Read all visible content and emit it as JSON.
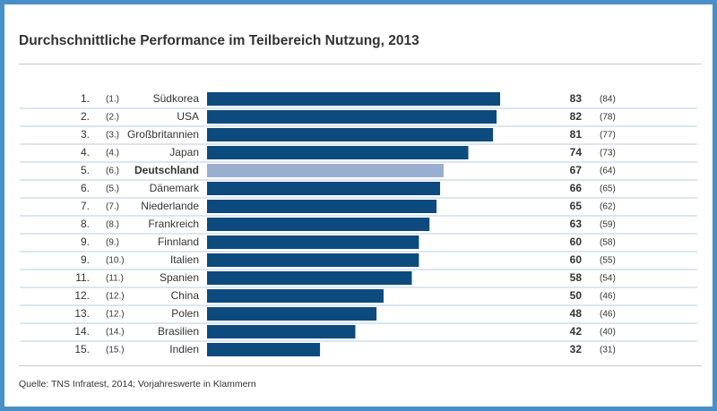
{
  "colors": {
    "bar": "#0d4a7e",
    "highlight_bar": "#9aafd0",
    "frame": "#4a90c8",
    "row_line": "#b8cce4",
    "text": "#333333"
  },
  "chart_data": {
    "type": "bar",
    "orientation": "horizontal",
    "title": "Durchschnittliche Performance im Teilbereich Nutzung, 2013",
    "source": "Quelle: TNS Infratest, 2014; Vorjahreswerte in Klammern",
    "highlight": "Deutschland",
    "xlim": [
      0,
      100
    ],
    "rows": [
      {
        "rank": "1.",
        "prev_rank": "(1.)",
        "category": "Südkorea",
        "value": 83,
        "prev_value": "(84)"
      },
      {
        "rank": "2.",
        "prev_rank": "(2.)",
        "category": "USA",
        "value": 82,
        "prev_value": "(78)"
      },
      {
        "rank": "3.",
        "prev_rank": "(3.)",
        "category": "Großbritannien",
        "value": 81,
        "prev_value": "(77)"
      },
      {
        "rank": "4.",
        "prev_rank": "(4.)",
        "category": "Japan",
        "value": 74,
        "prev_value": "(73)"
      },
      {
        "rank": "5.",
        "prev_rank": "(6.)",
        "category": "Deutschland",
        "value": 67,
        "prev_value": "(64)"
      },
      {
        "rank": "6.",
        "prev_rank": "(5.)",
        "category": "Dänemark",
        "value": 66,
        "prev_value": "(65)"
      },
      {
        "rank": "7.",
        "prev_rank": "(7.)",
        "category": "Niederlande",
        "value": 65,
        "prev_value": "(62)"
      },
      {
        "rank": "8.",
        "prev_rank": "(8.)",
        "category": "Frankreich",
        "value": 63,
        "prev_value": "(59)"
      },
      {
        "rank": "9.",
        "prev_rank": "(9.)",
        "category": "Finnland",
        "value": 60,
        "prev_value": "(58)"
      },
      {
        "rank": "9.",
        "prev_rank": "(10.)",
        "category": "Italien",
        "value": 60,
        "prev_value": "(55)"
      },
      {
        "rank": "11.",
        "prev_rank": "(11.)",
        "category": "Spanien",
        "value": 58,
        "prev_value": "(54)"
      },
      {
        "rank": "12.",
        "prev_rank": "(12.)",
        "category": "China",
        "value": 50,
        "prev_value": "(46)"
      },
      {
        "rank": "13.",
        "prev_rank": "(12.)",
        "category": "Polen",
        "value": 48,
        "prev_value": "(46)"
      },
      {
        "rank": "14.",
        "prev_rank": "(14.)",
        "category": "Brasilien",
        "value": 42,
        "prev_value": "(40)"
      },
      {
        "rank": "15.",
        "prev_rank": "(15.)",
        "category": "Indien",
        "value": 32,
        "prev_value": "(31)"
      }
    ]
  }
}
